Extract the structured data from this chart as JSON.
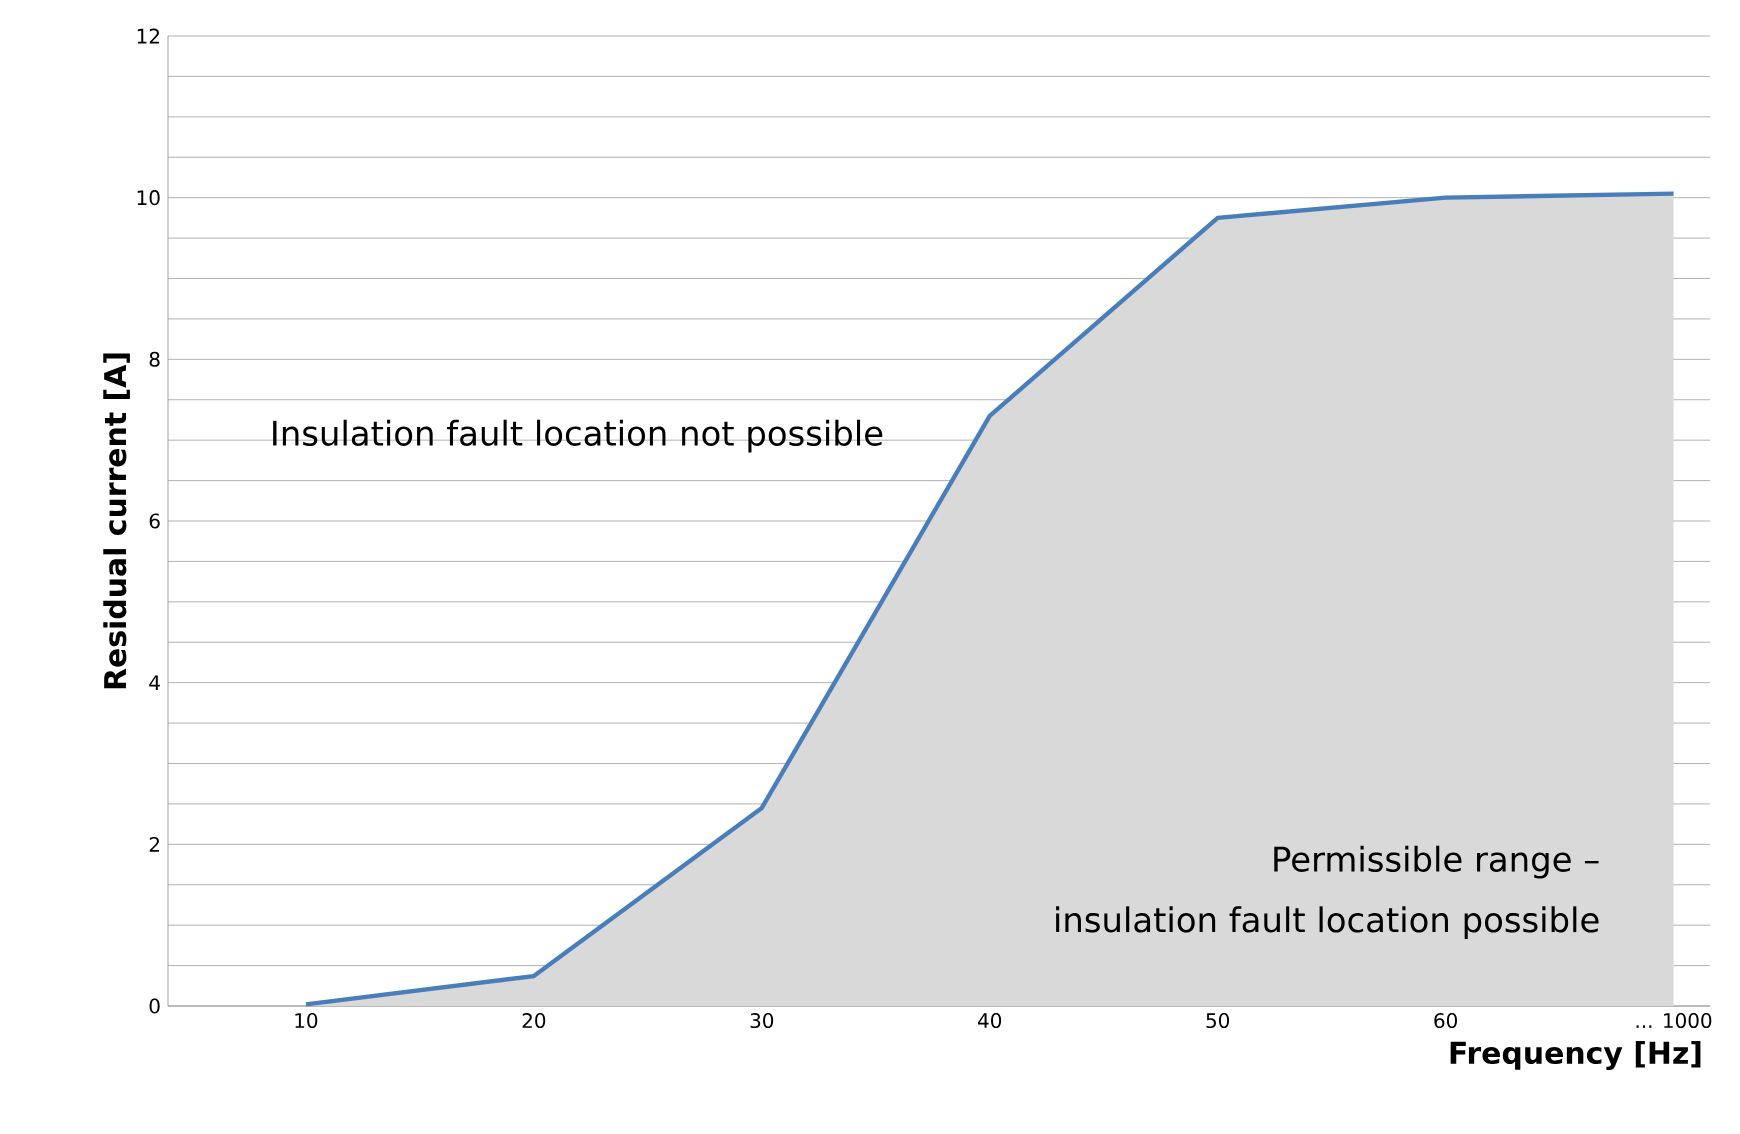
{
  "chart_data": {
    "type": "area",
    "xlabel": "Frequency [Hz]",
    "ylabel": "Residual current [A]",
    "annotations": [
      "Insulation fault location not possible",
      "Permissible range –",
      "insulation fault location possible"
    ],
    "categories": [
      "10",
      "20",
      "30",
      "40",
      "50",
      "60",
      "... 1000"
    ],
    "series": [
      {
        "color": "#4a7ebb",
        "values": [
          0.02,
          0.37,
          2.45,
          7.3,
          9.75,
          10.0,
          10.05
        ]
      }
    ],
    "ylim": [
      0,
      12
    ],
    "yticks": [
      0,
      {
        "value": 0.5,
        "label": null
      },
      {
        "value": 1,
        "label": null
      },
      {
        "value": 1.5,
        "label": null
      },
      2,
      {
        "value": 2.5,
        "label": null
      },
      {
        "value": 3,
        "label": null
      },
      {
        "value": 3.5,
        "label": null
      },
      4,
      {
        "value": 4.5,
        "label": null
      },
      {
        "value": 5,
        "label": null
      },
      {
        "value": 5.5,
        "label": null
      },
      6,
      {
        "value": 6.5,
        "label": null
      },
      {
        "value": 7,
        "label": null
      },
      {
        "value": 7.5,
        "label": null
      },
      8,
      {
        "value": 8.5,
        "label": null
      },
      {
        "value": 9,
        "label": null
      },
      {
        "value": 9.5,
        "label": null
      },
      10,
      {
        "value": 10.5,
        "label": null
      },
      {
        "value": 11,
        "label": null
      },
      {
        "value": 11.5,
        "label": null
      },
      12
    ],
    "grid": "y"
  }
}
